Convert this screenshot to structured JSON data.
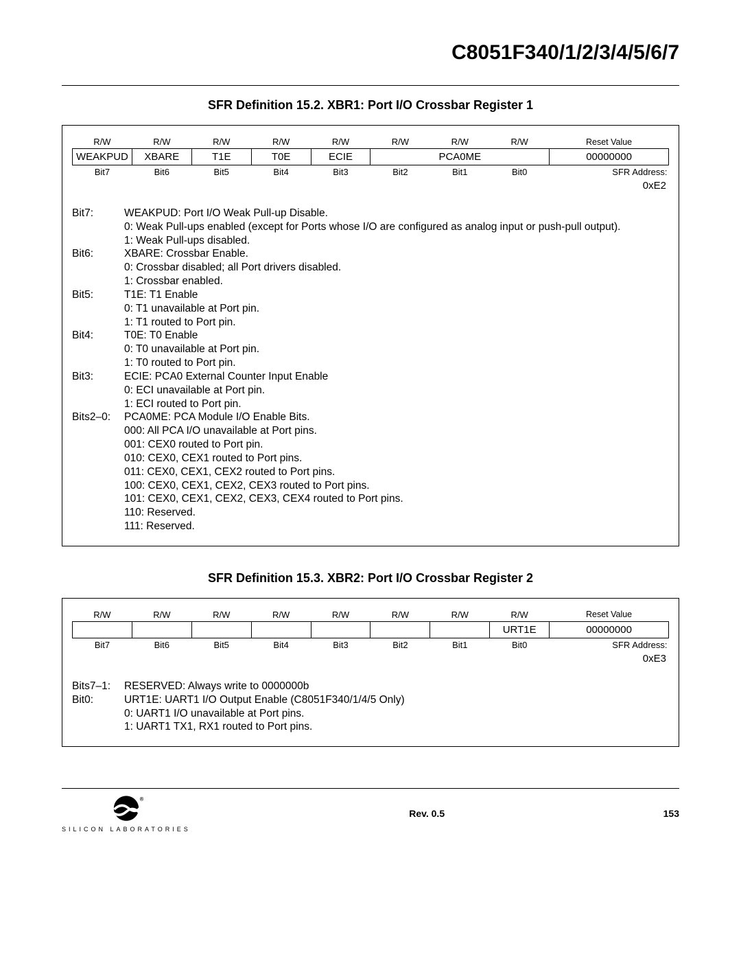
{
  "doc_title": "C8051F340/1/2/3/4/5/6/7",
  "section1": {
    "heading": "SFR Definition 15.2. XBR1: Port I/O Crossbar Register 1",
    "rw": [
      "R/W",
      "R/W",
      "R/W",
      "R/W",
      "R/W",
      "R/W",
      "R/W",
      "R/W"
    ],
    "reset_label": "Reset Value",
    "names": [
      "WEAKPUD",
      "XBARE",
      "T1E",
      "T0E",
      "ECIE",
      "",
      "PCA0ME",
      ""
    ],
    "reset_value": "00000000",
    "bits": [
      "Bit7",
      "Bit6",
      "Bit5",
      "Bit4",
      "Bit3",
      "Bit2",
      "Bit1",
      "Bit0"
    ],
    "sfr_addr_label": "SFR Address:",
    "sfr_addr": "0xE2",
    "desc": [
      {
        "label": "Bit7:",
        "lines": [
          "WEAKPUD: Port I/O Weak Pull-up Disable.",
          "0: Weak Pull-ups enabled (except for Ports whose I/O are configured as analog input or push-pull output).",
          "1: Weak Pull-ups disabled."
        ]
      },
      {
        "label": "Bit6:",
        "lines": [
          "XBARE: Crossbar Enable.",
          "0: Crossbar disabled; all Port drivers disabled.",
          "1: Crossbar enabled."
        ]
      },
      {
        "label": "Bit5:",
        "lines": [
          "T1E: T1 Enable",
          "0: T1 unavailable at Port pin.",
          "1: T1 routed to Port pin."
        ]
      },
      {
        "label": "Bit4:",
        "lines": [
          "T0E: T0 Enable",
          "0: T0 unavailable at Port pin.",
          "1: T0 routed to Port pin."
        ]
      },
      {
        "label": "Bit3:",
        "lines": [
          "ECIE: PCA0 External Counter Input Enable",
          "0: ECI unavailable at Port pin.",
          "1: ECI routed to Port pin."
        ]
      },
      {
        "label": "Bits2–0:",
        "lines": [
          "PCA0ME: PCA Module I/O Enable Bits.",
          "000: All PCA I/O unavailable at Port pins.",
          "001: CEX0 routed to Port pin.",
          "010: CEX0, CEX1 routed to Port pins.",
          "011: CEX0, CEX1, CEX2 routed to Port pins.",
          "100: CEX0, CEX1, CEX2, CEX3 routed to Port pins.",
          "101: CEX0, CEX1, CEX2, CEX3, CEX4 routed to Port pins.",
          "110: Reserved.",
          "111: Reserved."
        ]
      }
    ]
  },
  "section2": {
    "heading": "SFR Definition 15.3. XBR2: Port I/O Crossbar Register 2",
    "rw": [
      "R/W",
      "R/W",
      "R/W",
      "R/W",
      "R/W",
      "R/W",
      "R/W",
      "R/W"
    ],
    "reset_label": "Reset Value",
    "names": [
      "",
      "",
      "",
      "",
      "",
      "",
      "",
      "URT1E"
    ],
    "reset_value": "00000000",
    "bits": [
      "Bit7",
      "Bit6",
      "Bit5",
      "Bit4",
      "Bit3",
      "Bit2",
      "Bit1",
      "Bit0"
    ],
    "sfr_addr_label": "SFR Address:",
    "sfr_addr": "0xE3",
    "desc": [
      {
        "label": "Bits7–1:",
        "lines": [
          "RESERVED: Always write to 0000000b"
        ]
      },
      {
        "label": "Bit0:",
        "lines": [
          "URT1E: UART1 I/O Output Enable (C8051F340/1/4/5 Only)",
          "0: UART1 I/O unavailable at Port pins.",
          "1: UART1 TX1, RX1 routed to Port pins."
        ]
      }
    ]
  },
  "footer": {
    "rev": "Rev. 0.5",
    "page": "153",
    "logo_text": "SILICON LABORATORIES"
  }
}
